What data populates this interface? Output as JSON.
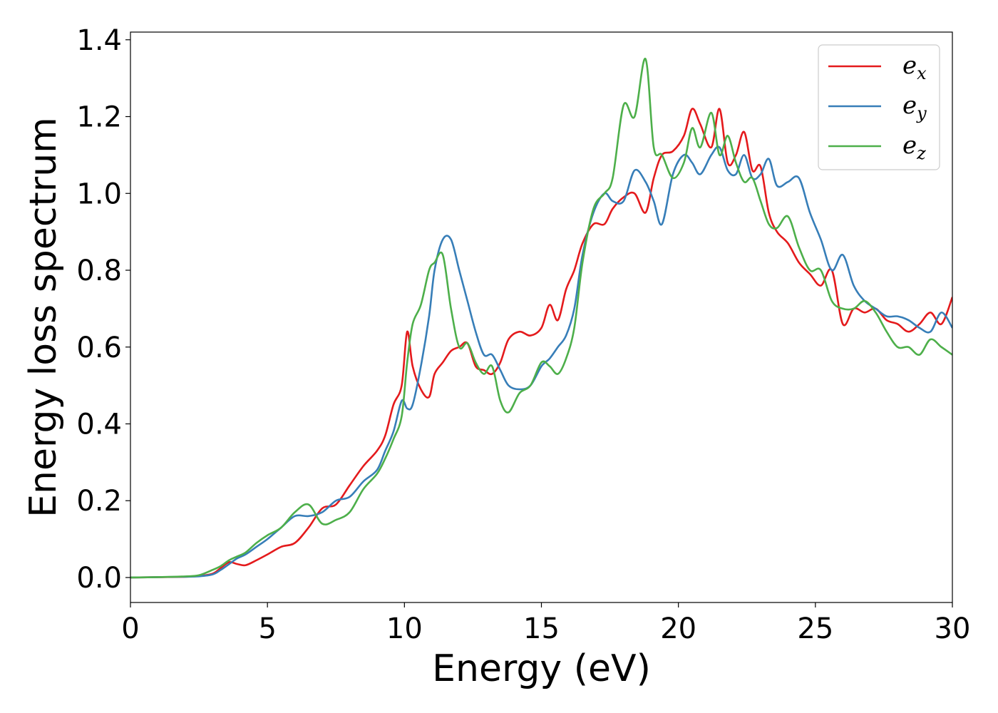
{
  "chart_data": {
    "type": "line",
    "xlabel": "Energy (eV)",
    "ylabel": "Energy loss spectrum",
    "xlim": [
      0,
      30
    ],
    "ylim": [
      -0.065,
      1.42
    ],
    "x_ticks": [
      0,
      5,
      10,
      15,
      20,
      25,
      30
    ],
    "x_tick_labels": [
      "0",
      "5",
      "10",
      "15",
      "20",
      "25",
      "30"
    ],
    "y_ticks": [
      0.0,
      0.2,
      0.4,
      0.6,
      0.8,
      1.0,
      1.2,
      1.4
    ],
    "y_tick_labels": [
      "0.0",
      "0.2",
      "0.4",
      "0.6",
      "0.8",
      "1.0",
      "1.2",
      "1.4"
    ],
    "grid": false,
    "legend_position": "top-right",
    "series": [
      {
        "name": "e_x",
        "legend_base": "e",
        "legend_sub": "x",
        "color": "#e41a1c",
        "x": [
          0,
          1,
          2,
          2.5,
          3,
          3.3,
          3.6,
          3.9,
          4.2,
          4.6,
          5,
          5.5,
          6,
          6.5,
          7,
          7.5,
          8,
          8.5,
          9,
          9.3,
          9.6,
          9.9,
          10.1,
          10.3,
          10.6,
          10.9,
          11.1,
          11.4,
          11.7,
          12,
          12.3,
          12.6,
          12.9,
          13.2,
          13.5,
          13.8,
          14.2,
          14.6,
          15,
          15.3,
          15.6,
          15.9,
          16.2,
          16.5,
          16.9,
          17.3,
          17.6,
          18,
          18.4,
          18.8,
          19.1,
          19.4,
          19.8,
          20.2,
          20.5,
          20.8,
          21.2,
          21.5,
          21.8,
          22.1,
          22.4,
          22.7,
          23,
          23.3,
          23.6,
          24,
          24.4,
          24.8,
          25.2,
          25.6,
          26,
          26.4,
          26.8,
          27.2,
          27.6,
          28,
          28.4,
          28.8,
          29.2,
          29.6,
          30
        ],
        "y": [
          0.0,
          0.001,
          0.002,
          0.004,
          0.01,
          0.025,
          0.04,
          0.035,
          0.032,
          0.045,
          0.06,
          0.08,
          0.09,
          0.13,
          0.18,
          0.19,
          0.24,
          0.29,
          0.33,
          0.37,
          0.45,
          0.5,
          0.64,
          0.55,
          0.49,
          0.47,
          0.53,
          0.56,
          0.59,
          0.6,
          0.61,
          0.55,
          0.54,
          0.53,
          0.56,
          0.62,
          0.64,
          0.63,
          0.65,
          0.71,
          0.67,
          0.75,
          0.8,
          0.87,
          0.92,
          0.92,
          0.96,
          0.99,
          1.0,
          0.95,
          1.04,
          1.1,
          1.11,
          1.15,
          1.22,
          1.18,
          1.12,
          1.22,
          1.08,
          1.1,
          1.16,
          1.06,
          1.07,
          0.95,
          0.9,
          0.87,
          0.82,
          0.79,
          0.76,
          0.8,
          0.66,
          0.7,
          0.69,
          0.7,
          0.67,
          0.66,
          0.64,
          0.66,
          0.69,
          0.66,
          0.73
        ]
      },
      {
        "name": "e_y",
        "legend_base": "e",
        "legend_sub": "y",
        "color": "#377eb8",
        "x": [
          0,
          1,
          2,
          2.5,
          3,
          3.3,
          3.6,
          3.9,
          4.2,
          4.6,
          5,
          5.5,
          6,
          6.5,
          7,
          7.5,
          8,
          8.5,
          9,
          9.3,
          9.6,
          9.9,
          10.1,
          10.3,
          10.6,
          10.9,
          11.1,
          11.4,
          11.7,
          12,
          12.3,
          12.6,
          12.9,
          13.2,
          13.5,
          13.8,
          14.2,
          14.6,
          15,
          15.3,
          15.6,
          15.9,
          16.2,
          16.5,
          16.9,
          17.3,
          17.6,
          18,
          18.4,
          18.8,
          19.1,
          19.4,
          19.8,
          20.2,
          20.5,
          20.8,
          21.2,
          21.5,
          21.8,
          22.1,
          22.4,
          22.7,
          23,
          23.3,
          23.6,
          24,
          24.4,
          24.8,
          25.2,
          25.6,
          26,
          26.4,
          26.8,
          27.2,
          27.6,
          28,
          28.4,
          28.8,
          29.2,
          29.6,
          30
        ],
        "y": [
          0.0,
          0.001,
          0.002,
          0.003,
          0.008,
          0.02,
          0.035,
          0.05,
          0.06,
          0.08,
          0.1,
          0.13,
          0.16,
          0.16,
          0.17,
          0.2,
          0.21,
          0.25,
          0.28,
          0.33,
          0.38,
          0.46,
          0.44,
          0.45,
          0.55,
          0.68,
          0.8,
          0.88,
          0.88,
          0.8,
          0.72,
          0.64,
          0.58,
          0.58,
          0.54,
          0.5,
          0.49,
          0.5,
          0.55,
          0.57,
          0.6,
          0.63,
          0.7,
          0.84,
          0.95,
          1.0,
          0.98,
          0.98,
          1.06,
          1.03,
          0.98,
          0.92,
          1.05,
          1.1,
          1.08,
          1.05,
          1.1,
          1.12,
          1.06,
          1.05,
          1.1,
          1.04,
          1.05,
          1.09,
          1.02,
          1.03,
          1.04,
          0.95,
          0.88,
          0.8,
          0.84,
          0.76,
          0.72,
          0.7,
          0.68,
          0.68,
          0.67,
          0.65,
          0.64,
          0.69,
          0.65
        ]
      },
      {
        "name": "e_z",
        "legend_base": "e",
        "legend_sub": "z",
        "color": "#4daf4a",
        "x": [
          0,
          1,
          2,
          2.5,
          3,
          3.3,
          3.6,
          3.9,
          4.2,
          4.6,
          5,
          5.5,
          6,
          6.5,
          7,
          7.5,
          8,
          8.5,
          9,
          9.3,
          9.6,
          9.9,
          10.1,
          10.3,
          10.6,
          10.9,
          11.1,
          11.4,
          11.7,
          12,
          12.3,
          12.6,
          12.9,
          13.2,
          13.5,
          13.8,
          14.2,
          14.6,
          15,
          15.3,
          15.6,
          15.9,
          16.2,
          16.5,
          16.9,
          17.3,
          17.6,
          18,
          18.4,
          18.8,
          19.1,
          19.4,
          19.8,
          20.2,
          20.5,
          20.8,
          21.2,
          21.5,
          21.8,
          22.1,
          22.4,
          22.7,
          23,
          23.3,
          23.6,
          24,
          24.4,
          24.8,
          25.2,
          25.6,
          26,
          26.4,
          26.8,
          27.2,
          27.6,
          28,
          28.4,
          28.8,
          29.2,
          29.6,
          30
        ],
        "y": [
          0.0,
          0.001,
          0.003,
          0.006,
          0.02,
          0.03,
          0.045,
          0.055,
          0.065,
          0.09,
          0.11,
          0.13,
          0.17,
          0.19,
          0.14,
          0.15,
          0.17,
          0.23,
          0.27,
          0.31,
          0.36,
          0.42,
          0.56,
          0.66,
          0.71,
          0.8,
          0.82,
          0.84,
          0.7,
          0.6,
          0.61,
          0.56,
          0.53,
          0.55,
          0.46,
          0.43,
          0.48,
          0.5,
          0.56,
          0.55,
          0.53,
          0.57,
          0.65,
          0.82,
          0.96,
          1.0,
          1.04,
          1.23,
          1.2,
          1.35,
          1.12,
          1.1,
          1.04,
          1.08,
          1.17,
          1.12,
          1.21,
          1.1,
          1.15,
          1.08,
          1.03,
          1.04,
          0.98,
          0.92,
          0.91,
          0.94,
          0.86,
          0.8,
          0.8,
          0.72,
          0.7,
          0.7,
          0.72,
          0.69,
          0.64,
          0.6,
          0.6,
          0.58,
          0.62,
          0.6,
          0.58
        ]
      }
    ]
  }
}
